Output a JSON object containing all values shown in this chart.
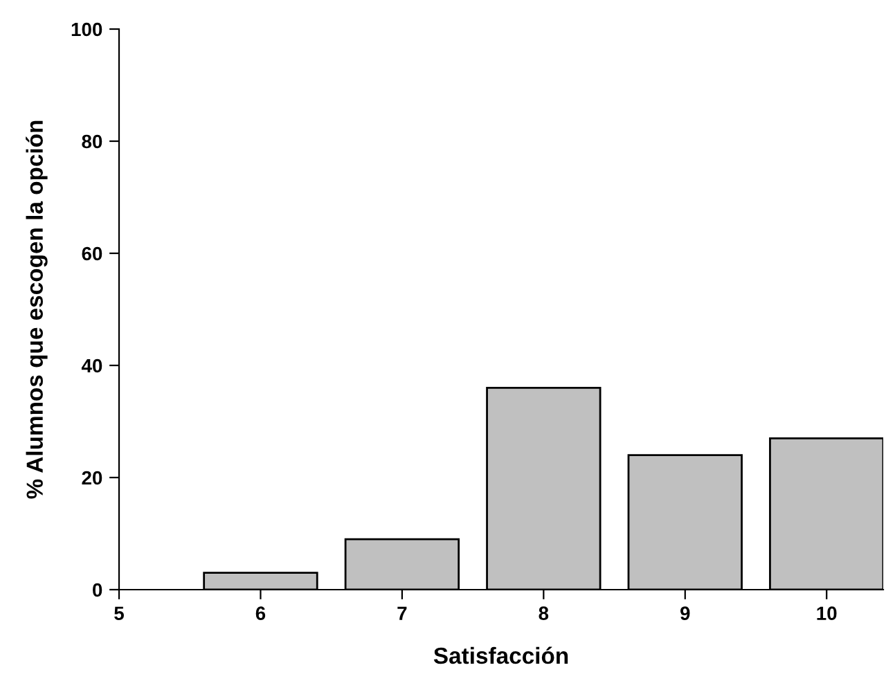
{
  "chart_data": {
    "type": "bar",
    "xlabel": "Satisfacción",
    "ylabel": "% Alumnos que escogen la opción",
    "x": [
      6,
      7,
      8,
      9,
      10
    ],
    "values": [
      3,
      9,
      36,
      24,
      27
    ],
    "color": "#c0c0c0",
    "xlim": [
      5,
      10.4
    ],
    "xticks": [
      5,
      6,
      7,
      8,
      9,
      10
    ],
    "ylim": [
      0,
      100
    ],
    "yticks": [
      0,
      20,
      40,
      60,
      80,
      100
    ],
    "grid": false,
    "legend": false
  }
}
